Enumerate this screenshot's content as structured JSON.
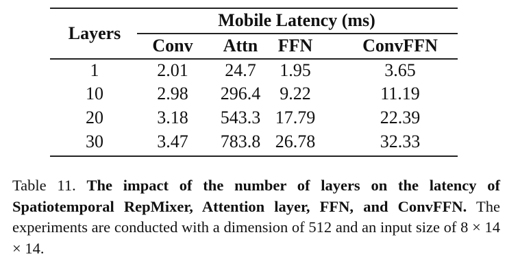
{
  "table": {
    "row_header": "Layers",
    "group_header": "Mobile Latency (ms)",
    "columns": [
      "Conv",
      "Attn",
      "FFN",
      "ConvFFN"
    ],
    "rows": [
      {
        "layers": "1",
        "values": [
          "2.01",
          "24.7",
          "1.95",
          "3.65"
        ]
      },
      {
        "layers": "10",
        "values": [
          "2.98",
          "296.4",
          "9.22",
          "11.19"
        ]
      },
      {
        "layers": "20",
        "values": [
          "3.18",
          "543.3",
          "17.79",
          "22.39"
        ]
      },
      {
        "layers": "30",
        "values": [
          "3.47",
          "783.8",
          "26.78",
          "32.33"
        ]
      }
    ]
  },
  "caption": {
    "label": "Table 11.",
    "bold": "The impact of the number of layers on the latency of Spatiotemporal RepMixer, Attention layer, FFN, and ConvFFN.",
    "text": "The experiments are conducted with a dimension of 512 and an input size of 8 × 14 × 14."
  }
}
